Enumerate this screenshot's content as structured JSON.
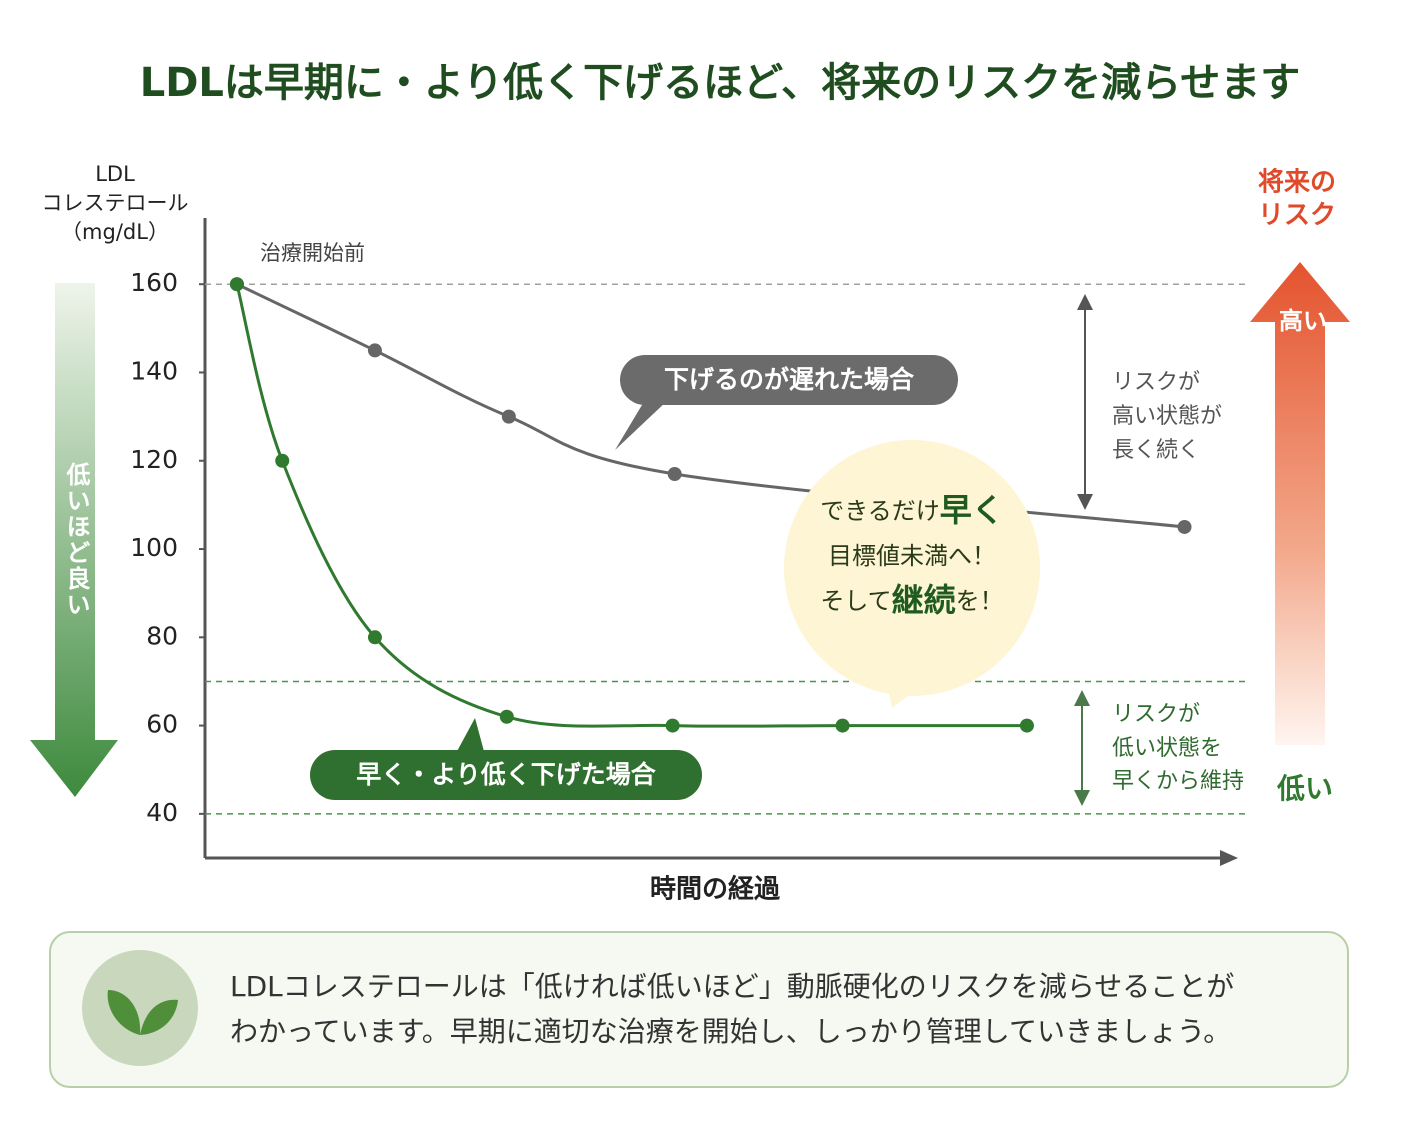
{
  "chart_data": {
    "type": "line",
    "title": "LDLは早期に・より低く下げるほど、将来のリスクを減らせます",
    "y_label": [
      "LDL",
      "コレステロール",
      "（mg/dL）"
    ],
    "x_label": "時間の経過",
    "xlim": [
      0,
      100
    ],
    "ylim": [
      30,
      175
    ],
    "yticks": [
      40,
      60,
      80,
      100,
      120,
      140,
      160
    ],
    "series": [
      {
        "name": "下げるのが遅れた場合",
        "color": "#666666",
        "x": [
          3.1,
          16.5,
          29.5,
          45.6,
          95.1
        ],
        "values": [
          160,
          145,
          130,
          117,
          105
        ]
      },
      {
        "name": "早く・より低く下げた場合",
        "color": "#2f7a2f",
        "x": [
          3.1,
          7.5,
          16.5,
          29.3,
          45.4,
          61.9,
          79.8
        ],
        "values": [
          160,
          120,
          80,
          62,
          60,
          60,
          60
        ]
      }
    ],
    "reference_lines": [
      {
        "value": 160,
        "color": "#a0a0a0"
      },
      {
        "value": 70,
        "color": "#4a944a"
      },
      {
        "value": 40,
        "color": "#4a944a"
      }
    ],
    "start_label": "治療開始前",
    "bubble": [
      [
        {
          "text": "できるだけ"
        },
        {
          "text": "早く",
          "bold": true
        }
      ],
      [
        {
          "text": "目標値未満へ！"
        }
      ],
      [
        {
          "text": "そして"
        },
        {
          "text": "継続",
          "bold": true
        },
        {
          "text": "を！"
        }
      ]
    ],
    "risk_high_note": [
      "リスクが",
      "高い状態が",
      "長く続く"
    ],
    "risk_low_note": [
      "リスクが",
      "低い状態を",
      "早くから維持"
    ],
    "left_arrow_label": "低いほど良い",
    "right_arrow_title": [
      "将来の",
      "リスク"
    ],
    "risk_high": "高い",
    "risk_low": "低い"
  },
  "footer": {
    "lines": [
      "LDLコレステロールは「低ければ低いほど」動脈硬化のリスクを減らせることが",
      "わかっています。早期に適切な治療を開始し、しっかり管理していきましょう。"
    ]
  }
}
